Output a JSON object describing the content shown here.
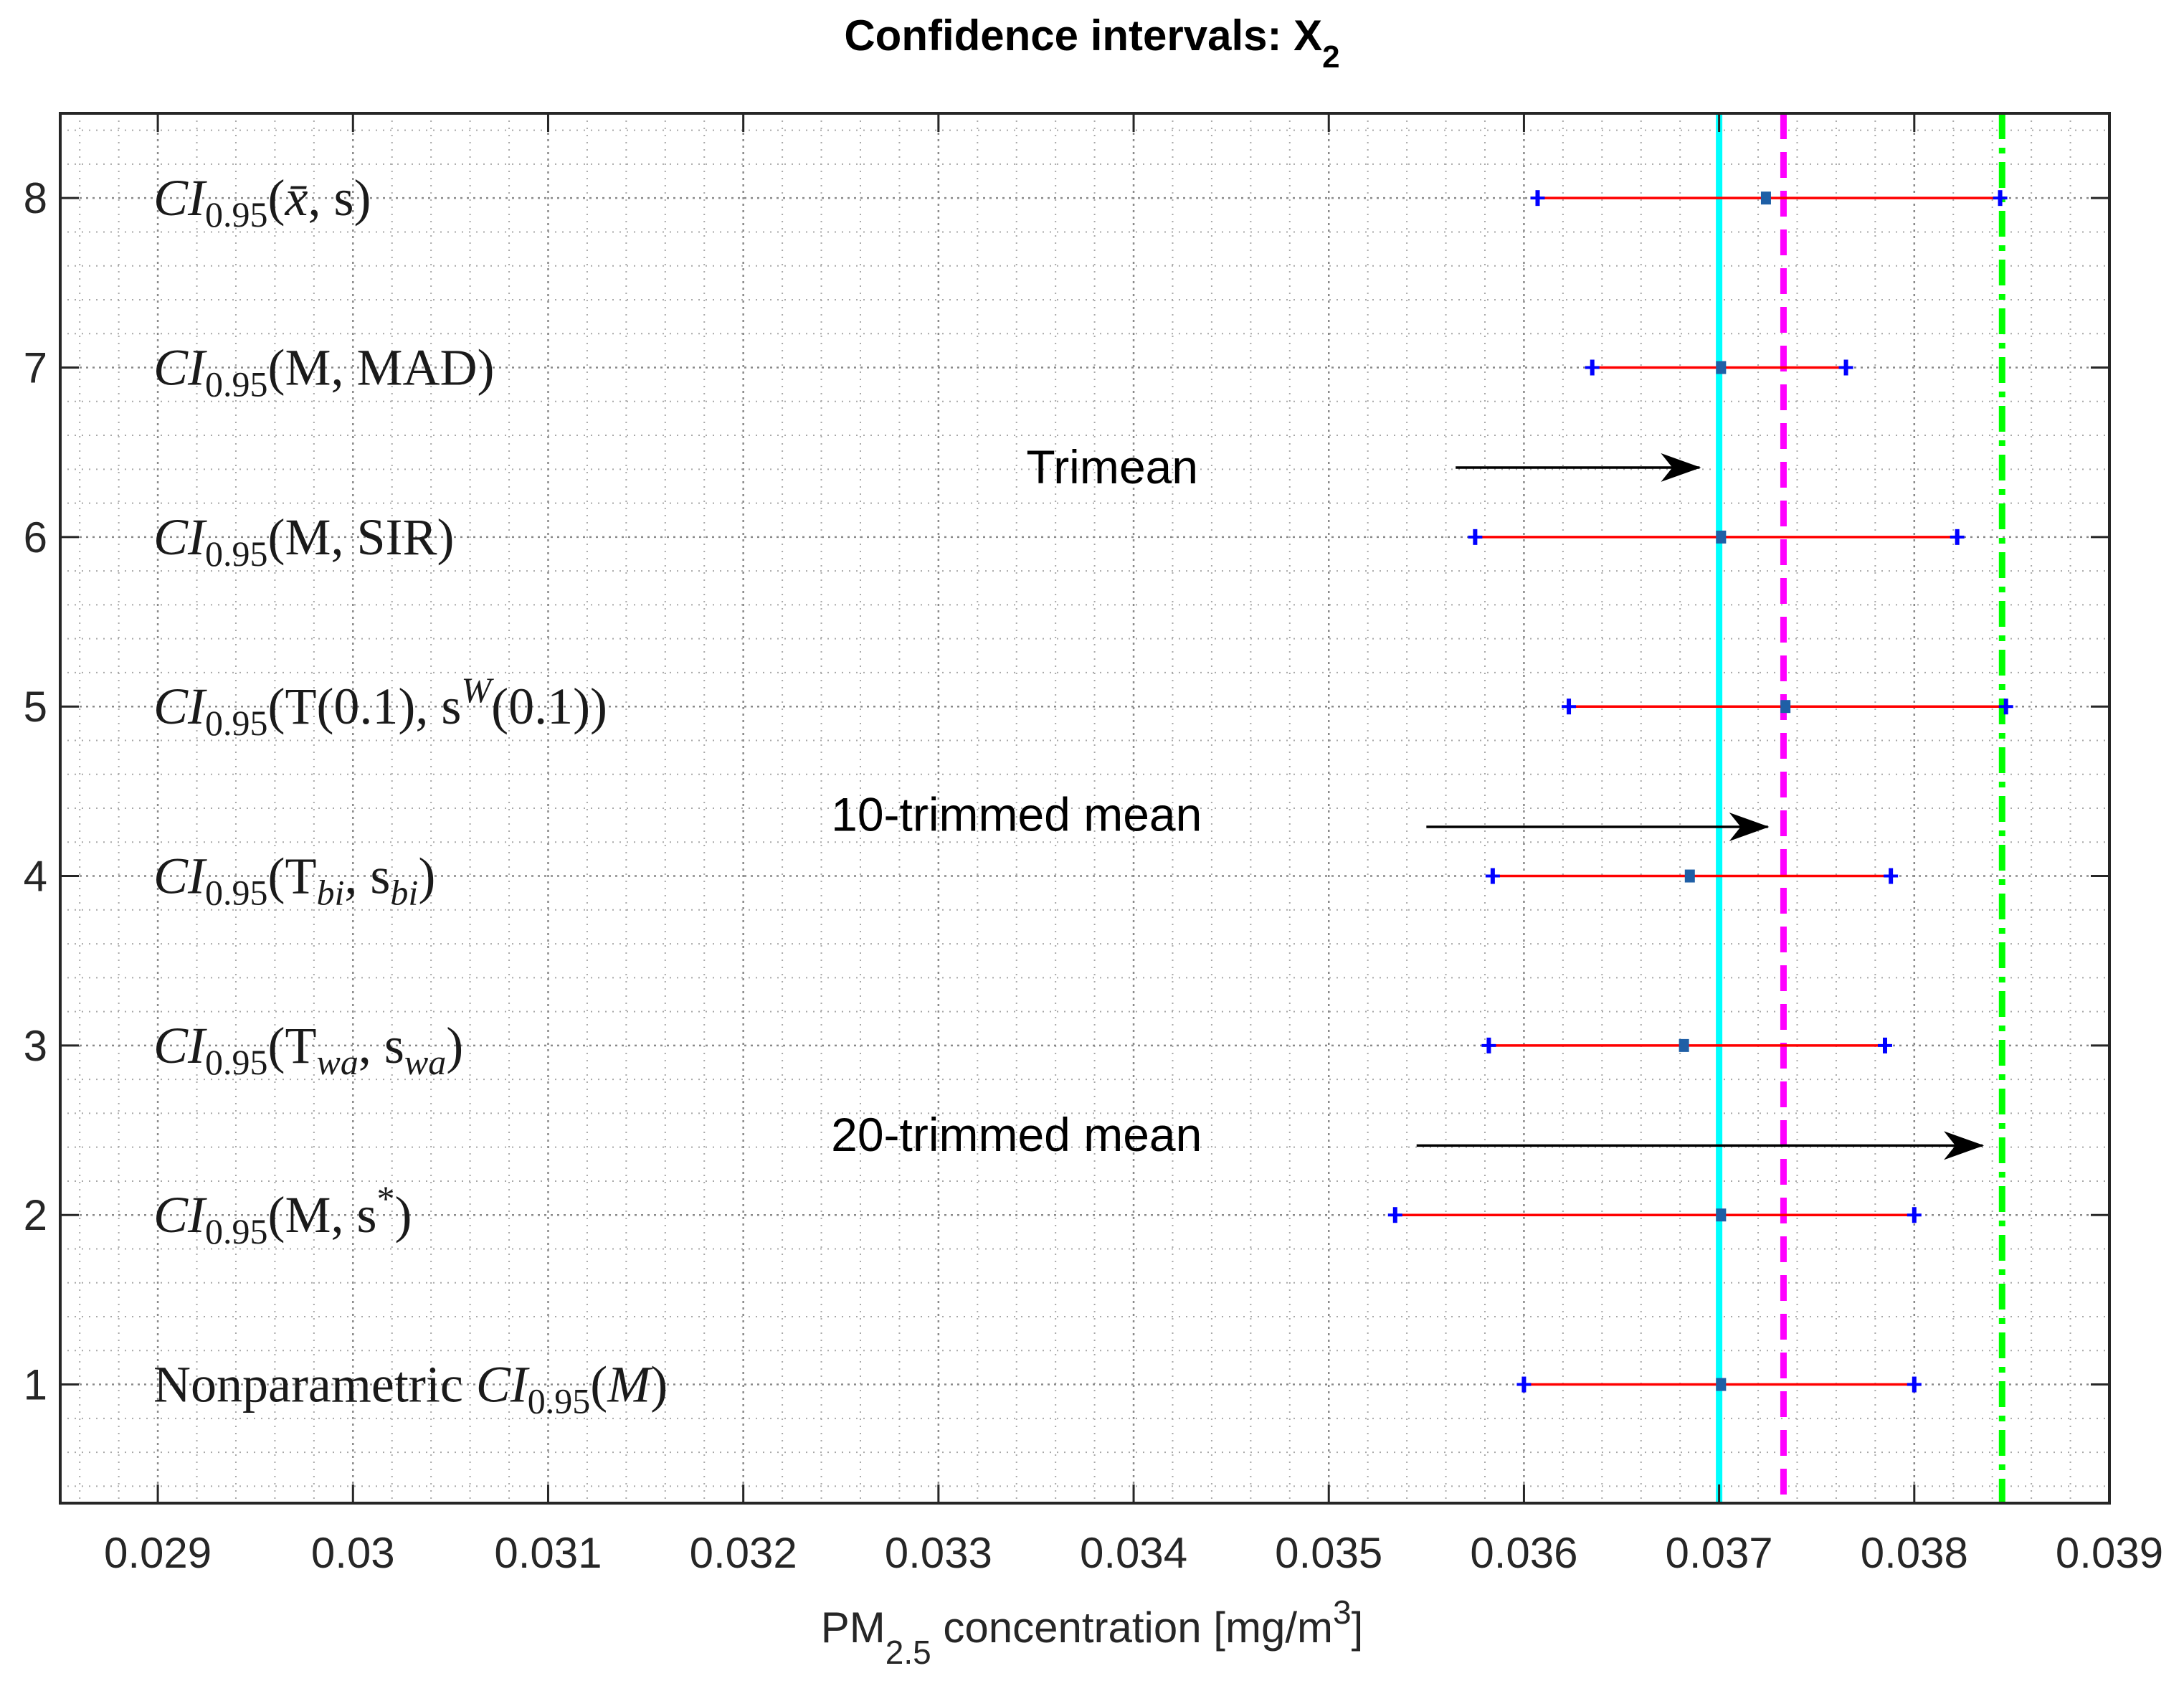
{
  "chart_data": {
    "type": "errorbar",
    "title_main": "Confidence intervals: X",
    "title_sub": "2",
    "xlabel_pre": "PM",
    "xlabel_sub": "2.5",
    "xlabel_mid": " concentration [mg/m",
    "xlabel_sup": "3",
    "xlabel_post": "]",
    "xlim": [
      0.0285,
      0.039
    ],
    "ylim": [
      0.3,
      8.5
    ],
    "grid": "on-minor",
    "x_ticks": [
      {
        "value": 0.029,
        "label": "0.029"
      },
      {
        "value": 0.03,
        "label": "0.03"
      },
      {
        "value": 0.031,
        "label": "0.031"
      },
      {
        "value": 0.032,
        "label": "0.032"
      },
      {
        "value": 0.033,
        "label": "0.033"
      },
      {
        "value": 0.034,
        "label": "0.034"
      },
      {
        "value": 0.035,
        "label": "0.035"
      },
      {
        "value": 0.036,
        "label": "0.036"
      },
      {
        "value": 0.037,
        "label": "0.037"
      },
      {
        "value": 0.038,
        "label": "0.038"
      },
      {
        "value": 0.039,
        "label": "0.039"
      }
    ],
    "y_ticks": [
      {
        "value": 1,
        "label": "1"
      },
      {
        "value": 2,
        "label": "2"
      },
      {
        "value": 3,
        "label": "3"
      },
      {
        "value": 4,
        "label": "4"
      },
      {
        "value": 5,
        "label": "5"
      },
      {
        "value": 6,
        "label": "6"
      },
      {
        "value": 7,
        "label": "7"
      },
      {
        "value": 8,
        "label": "8"
      }
    ],
    "intervals": [
      {
        "y": 8,
        "lower": 0.03607,
        "center": 0.03724,
        "upper": 0.03844,
        "label_parts": [
          "CI",
          "0.95",
          "(",
          "x̄",
          ", s)"
        ]
      },
      {
        "y": 7,
        "lower": 0.03635,
        "center": 0.03701,
        "upper": 0.03765,
        "label_parts": [
          "CI",
          "0.95",
          "(M, MAD)"
        ]
      },
      {
        "y": 6,
        "lower": 0.03575,
        "center": 0.03701,
        "upper": 0.03822,
        "label_parts": [
          "CI",
          "0.95",
          "(M, SIR)"
        ]
      },
      {
        "y": 5,
        "lower": 0.03623,
        "center": 0.03734,
        "upper": 0.03847,
        "label_parts": [
          "CI",
          "0.95",
          "(T(0.1), s",
          "W",
          "(0.1))"
        ]
      },
      {
        "y": 4,
        "lower": 0.03584,
        "center": 0.03685,
        "upper": 0.03788,
        "label_parts": [
          "CI",
          "0.95",
          "(T",
          "bi",
          ", s",
          "bi",
          ")"
        ]
      },
      {
        "y": 3,
        "lower": 0.03582,
        "center": 0.03682,
        "upper": 0.03785,
        "label_parts": [
          "CI",
          "0.95",
          "(T",
          "wa",
          ", s",
          "wa",
          ")"
        ]
      },
      {
        "y": 2,
        "lower": 0.03534,
        "center": 0.03701,
        "upper": 0.038,
        "label_parts": [
          "CI",
          "0.95",
          "(M, s",
          "*",
          ")"
        ]
      },
      {
        "y": 1,
        "lower": 0.036,
        "center": 0.03701,
        "upper": 0.038,
        "label_parts": [
          "Nonparametric CI",
          "0.95",
          "(M)"
        ]
      }
    ],
    "reference_lines": [
      {
        "name": "Trimean",
        "x": 0.037,
        "color": "#00FFFF",
        "style": "solid"
      },
      {
        "name": "10-trimmed mean",
        "x": 0.03733,
        "color": "#FF00FF",
        "style": "dashed"
      },
      {
        "name": "20-trimmed mean",
        "x": 0.03845,
        "color": "#00FF00",
        "style": "dashdot"
      }
    ],
    "annotations": [
      {
        "text": "Trimean",
        "text_x": 0.03345,
        "text_y": 6.41,
        "arrow_from": 0.03565,
        "arrow_to": 0.0369,
        "arrow_y": 6.41
      },
      {
        "text": "10-trimmed mean",
        "text_x": 0.03245,
        "text_y": 4.36,
        "arrow_from": 0.0355,
        "arrow_to": 0.03725,
        "arrow_y": 4.29
      },
      {
        "text": "20-trimmed mean",
        "text_x": 0.03245,
        "text_y": 2.47,
        "arrow_from": 0.03545,
        "arrow_to": 0.03835,
        "arrow_y": 2.41
      }
    ],
    "colors": {
      "interval": "#FF0000",
      "endpoint": "#0000FF",
      "center": "#1F5FA6",
      "axis": "#262626",
      "grid": "#A8A8A8",
      "arrow": "#000000"
    }
  }
}
